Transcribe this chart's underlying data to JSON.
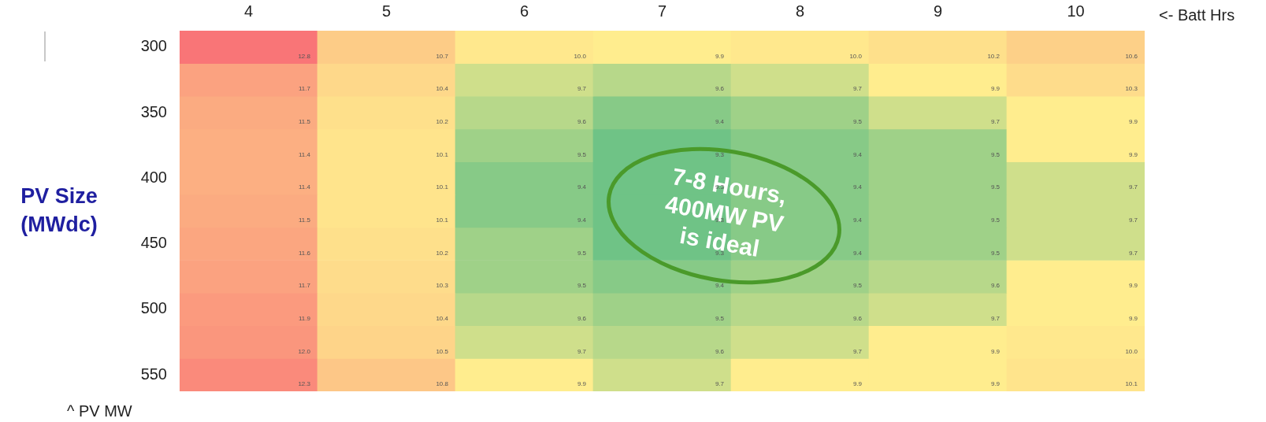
{
  "chart_data": {
    "type": "heatmap",
    "xlabel": "<- Batt Hrs",
    "ylabel": "PV Size (MWdc)",
    "categories": [
      "4",
      "5",
      "6",
      "7",
      "8",
      "9",
      "10"
    ],
    "y_categories": [
      "300",
      null,
      "350",
      null,
      "400",
      null,
      "450",
      null,
      "500",
      null,
      "550"
    ],
    "cells": [
      [
        12.8,
        10.7,
        10.0,
        9.9,
        10.0,
        10.2,
        10.6
      ],
      [
        11.7,
        10.4,
        9.7,
        9.6,
        9.7,
        9.9,
        10.3
      ],
      [
        11.5,
        10.2,
        9.6,
        9.4,
        9.5,
        9.7,
        9.9
      ],
      [
        11.4,
        10.1,
        9.5,
        9.3,
        9.4,
        9.5,
        9.9
      ],
      [
        11.4,
        10.1,
        9.4,
        9.3,
        9.4,
        9.5,
        9.7
      ],
      [
        11.5,
        10.1,
        9.4,
        9.3,
        9.4,
        9.5,
        9.7
      ],
      [
        11.6,
        10.2,
        9.5,
        9.3,
        9.4,
        9.5,
        9.7
      ],
      [
        11.7,
        10.3,
        9.5,
        9.4,
        9.5,
        9.6,
        9.9
      ],
      [
        11.9,
        10.4,
        9.6,
        9.5,
        9.6,
        9.7,
        9.9
      ],
      [
        12.0,
        10.5,
        9.7,
        9.6,
        9.7,
        9.9,
        10.0
      ],
      [
        12.3,
        10.8,
        9.9,
        9.7,
        9.9,
        9.9,
        10.1
      ]
    ],
    "cell_labels": [
      [
        "12.8",
        "10.7",
        "10.0",
        "9.9",
        "10.0",
        "10.2",
        "10.6"
      ],
      [
        "11.7",
        "10.4",
        "9.7",
        "9.6",
        "9.7",
        "9.9",
        "10.3"
      ],
      [
        "11.5",
        "10.2",
        "9.6",
        "9.4",
        "9.5",
        "9.7",
        "9.9"
      ],
      [
        "11.4",
        "10.1",
        "9.5",
        "9.3",
        "9.4",
        "9.5",
        "9.9"
      ],
      [
        "11.4",
        "10.1",
        "9.4",
        "9.3",
        "9.4",
        "9.5",
        "9.7"
      ],
      [
        "11.5",
        "10.1",
        "9.4",
        "9.3",
        "9.4",
        "9.5",
        "9.7"
      ],
      [
        "11.6",
        "10.2",
        "9.5",
        "9.3",
        "9.4",
        "9.5",
        "9.7"
      ],
      [
        "11.7",
        "10.3",
        "9.5",
        "9.4",
        "9.5",
        "9.6",
        "9.9"
      ],
      [
        "11.9",
        "10.4",
        "9.6",
        "9.5",
        "9.6",
        "9.7",
        "9.9"
      ],
      [
        "12.0",
        "10.5",
        "9.7",
        "9.6",
        "9.7",
        "9.9",
        "10.0"
      ],
      [
        "12.3",
        "10.8",
        "9.9",
        "9.7",
        "9.9",
        "9.9",
        "10.1"
      ]
    ],
    "annotations": [
      "^ PV MW",
      "7-8 Hours, 400MW PV is ideal"
    ]
  }
}
